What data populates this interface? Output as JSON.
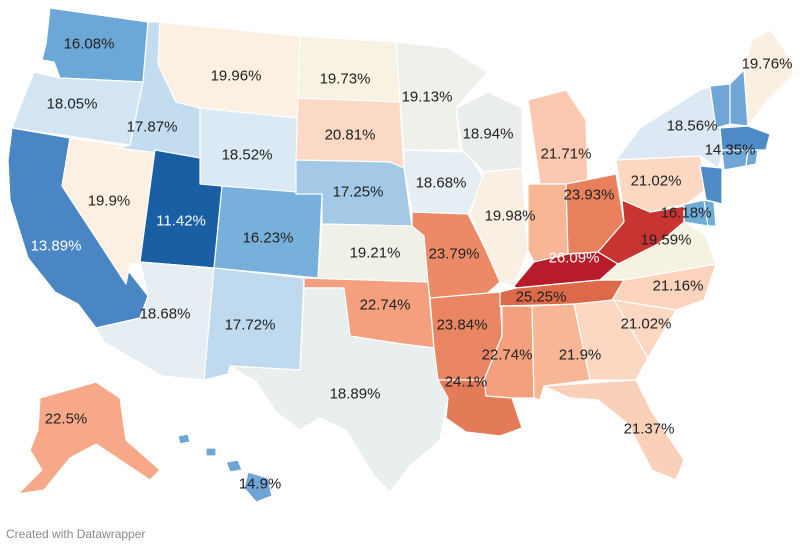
{
  "credit": "Created with Datawrapper",
  "palette": {
    "u1142": "#1a5fa3",
    "u1389": "#4a86c4",
    "u1435": "#4f8bc6",
    "u1490": "#6fa6d6",
    "u1608": "#6ba8d8",
    "u1618": "#6fadd9",
    "u1623": "#76b0db",
    "u1725": "#a3c9e6",
    "u1772": "#bfd9ee",
    "u1787": "#c3dcf0",
    "u1805": "#d3e5f3",
    "u1852": "#dae9f4",
    "u1856": "#dce9f4",
    "u1868": "#e6eef3",
    "u1889": "#e9eeee",
    "u1894": "#e9eeec",
    "u1913": "#eef0ea",
    "u1921": "#eff0e8",
    "u1959": "#f6f2e2",
    "u1973": "#f8f2e2",
    "u1976": "#fbefe1",
    "u1990": "#fbf0e2",
    "u1996": "#fbf0e2",
    "u1998": "#f9efe3",
    "u2081": "#fbd9c5",
    "u2102": "#fcd8c3",
    "u2116": "#fcd3bd",
    "u2137": "#fbd0b9",
    "u2171": "#fbc9b1",
    "u2190": "#f7b796",
    "u2250": "#f6a888",
    "u2274": "#f49f7e",
    "u2379": "#ec8a68",
    "u2384": "#ea8563",
    "u2393": "#e8805d",
    "u2409": "#e37a58",
    "u2525": "#dc6a4a",
    "u2609": "#b71c2b",
    "wv": "#c73431"
  },
  "states": [
    {
      "name": "Washington",
      "value": "16.08%"
    },
    {
      "name": "Oregon",
      "value": "18.05%"
    },
    {
      "name": "California",
      "value": "13.89%"
    },
    {
      "name": "Nevada",
      "value": "19.9%"
    },
    {
      "name": "Idaho",
      "value": "17.87%"
    },
    {
      "name": "Montana",
      "value": "19.96%"
    },
    {
      "name": "Wyoming",
      "value": "18.52%"
    },
    {
      "name": "Utah",
      "value": "11.42%"
    },
    {
      "name": "Arizona",
      "value": "18.68%"
    },
    {
      "name": "Colorado",
      "value": "16.23%"
    },
    {
      "name": "New Mexico",
      "value": "17.72%"
    },
    {
      "name": "North Dakota",
      "value": "19.73%"
    },
    {
      "name": "South Dakota",
      "value": "20.81%"
    },
    {
      "name": "Nebraska",
      "value": "17.25%"
    },
    {
      "name": "Kansas",
      "value": "19.21%"
    },
    {
      "name": "Oklahoma",
      "value": "22.74%"
    },
    {
      "name": "Texas",
      "value": "18.89%"
    },
    {
      "name": "Minnesota",
      "value": "19.13%"
    },
    {
      "name": "Iowa",
      "value": "18.68%"
    },
    {
      "name": "Missouri",
      "value": "23.79%"
    },
    {
      "name": "Arkansas",
      "value": "23.84%"
    },
    {
      "name": "Louisiana",
      "value": "24.1%"
    },
    {
      "name": "Wisconsin",
      "value": "18.94%"
    },
    {
      "name": "Illinois",
      "value": "19.98%"
    },
    {
      "name": "Michigan",
      "value": "21.71%"
    },
    {
      "name": "Indiana",
      "value": ""
    },
    {
      "name": "Ohio",
      "value": "23.93%"
    },
    {
      "name": "Kentucky",
      "value": "26.09%"
    },
    {
      "name": "Tennessee",
      "value": "25.25%"
    },
    {
      "name": "Mississippi",
      "value": "22.74%"
    },
    {
      "name": "Alabama",
      "value": "21.9%"
    },
    {
      "name": "Georgia",
      "value": "21.02%"
    },
    {
      "name": "Florida",
      "value": "21.37%"
    },
    {
      "name": "South Carolina",
      "value": ""
    },
    {
      "name": "North Carolina",
      "value": "21.16%"
    },
    {
      "name": "Virginia",
      "value": "19.59%"
    },
    {
      "name": "West Virginia",
      "value": ""
    },
    {
      "name": "Pennsylvania",
      "value": "21.02%"
    },
    {
      "name": "New York",
      "value": "18.56%"
    },
    {
      "name": "New Jersey",
      "value": ""
    },
    {
      "name": "Maryland",
      "value": "16.18%"
    },
    {
      "name": "Delaware",
      "value": ""
    },
    {
      "name": "Massachusetts",
      "value": "14.35%"
    },
    {
      "name": "Vermont",
      "value": ""
    },
    {
      "name": "New Hampshire",
      "value": ""
    },
    {
      "name": "Maine",
      "value": "19.76%"
    },
    {
      "name": "Connecticut",
      "value": ""
    },
    {
      "name": "Rhode Island",
      "value": ""
    },
    {
      "name": "Alaska",
      "value": "22.5%"
    },
    {
      "name": "Hawaii",
      "value": "14.9%"
    }
  ]
}
